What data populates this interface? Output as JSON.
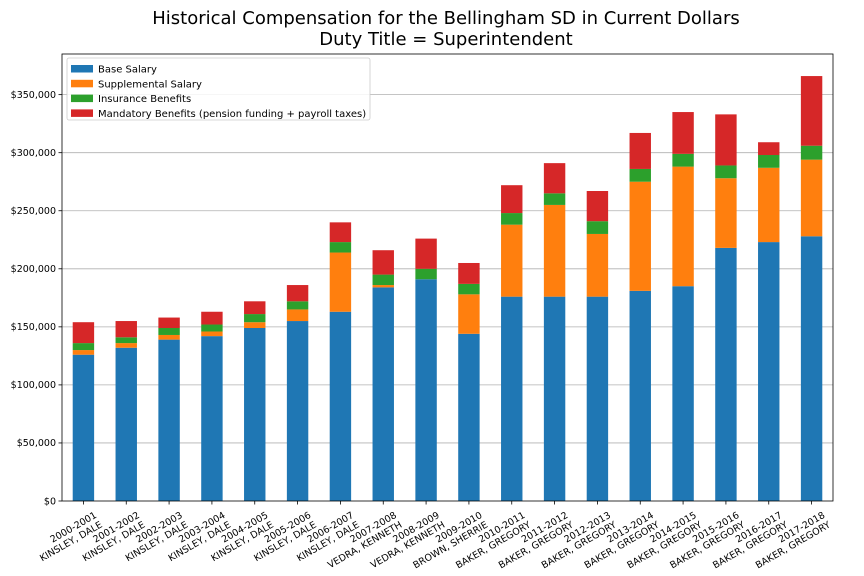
{
  "chart_data": {
    "type": "bar",
    "stacked": true,
    "title": "Historical Compensation for the Bellingham SD in Current Dollars",
    "subtitle": "Duty Title = Superintendent",
    "ylim": [
      0,
      385000
    ],
    "yticks": [
      0,
      50000,
      100000,
      150000,
      200000,
      250000,
      300000,
      350000
    ],
    "ytick_labels": [
      "$0",
      "$50,000",
      "$100,000",
      "$150,000",
      "$200,000",
      "$250,000",
      "$300,000",
      "$350,000"
    ],
    "grid": "y",
    "legend_position": "top-left",
    "categories": [
      [
        "2000-2001",
        "KINSLEY, DALE"
      ],
      [
        "2001-2002",
        "KINSLEY, DALE"
      ],
      [
        "2002-2003",
        "KINSLEY, DALE"
      ],
      [
        "2003-2004",
        "KINSLEY, DALE"
      ],
      [
        "2004-2005",
        "KINSLEY, DALE"
      ],
      [
        "2005-2006",
        "KINSLEY, DALE"
      ],
      [
        "2006-2007",
        "KINSLEY, DALE"
      ],
      [
        "2007-2008",
        "VEDRA, KENNETH"
      ],
      [
        "2008-2009",
        "VEDRA, KENNETH"
      ],
      [
        "2009-2010",
        "BROWN, SHERRIE"
      ],
      [
        "2010-2011",
        "BAKER, GREGORY"
      ],
      [
        "2011-2012",
        "BAKER, GREGORY"
      ],
      [
        "2012-2013",
        "BAKER, GREGORY"
      ],
      [
        "2013-2014",
        "BAKER, GREGORY"
      ],
      [
        "2014-2015",
        "BAKER, GREGORY"
      ],
      [
        "2015-2016",
        "BAKER, GREGORY"
      ],
      [
        "2016-2017",
        "BAKER, GREGORY"
      ],
      [
        "2017-2018",
        "BAKER, GREGORY"
      ]
    ],
    "series": [
      {
        "name": "Base Salary",
        "color": "#1f77b4",
        "values": [
          126000,
          132000,
          139000,
          142000,
          149000,
          155000,
          163000,
          184000,
          191000,
          144000,
          176000,
          176000,
          176000,
          181000,
          185000,
          218000,
          223000,
          228000
        ]
      },
      {
        "name": "Supplemental Salary",
        "color": "#ff7f0e",
        "values": [
          4000,
          4000,
          4000,
          4000,
          5000,
          10000,
          51000,
          2000,
          0,
          34000,
          62000,
          79000,
          54000,
          94000,
          103000,
          60000,
          64000,
          66000
        ]
      },
      {
        "name": "Insurance Benefits",
        "color": "#2ca02c",
        "values": [
          6000,
          5000,
          6000,
          6000,
          7000,
          7000,
          9000,
          9000,
          9000,
          9000,
          10000,
          10000,
          11000,
          11000,
          11000,
          11000,
          11000,
          12000
        ]
      },
      {
        "name": "Mandatory Benefits (pension funding + payroll taxes)",
        "color": "#d62728",
        "values": [
          18000,
          14000,
          9000,
          11000,
          11000,
          14000,
          17000,
          21000,
          26000,
          18000,
          24000,
          26000,
          26000,
          31000,
          36000,
          44000,
          11000,
          60000
        ]
      }
    ]
  }
}
